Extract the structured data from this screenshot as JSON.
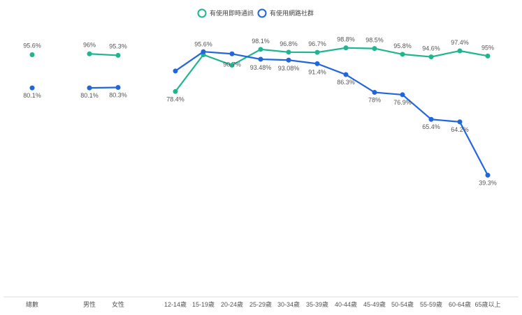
{
  "chart_data": {
    "type": "line",
    "categories": [
      "總數",
      "男性",
      "女性",
      "12-14歲",
      "15-19歲",
      "20-24歲",
      "25-29歲",
      "30-34歲",
      "35-39歲",
      "40-44歲",
      "45-49歲",
      "50-54歲",
      "55-59歲",
      "60-64歲",
      "65歲以上"
    ],
    "groups": [
      [
        0
      ],
      [
        1,
        2
      ],
      [
        3,
        4,
        5,
        6,
        7,
        8,
        9,
        10,
        11,
        12,
        13,
        14
      ]
    ],
    "series": [
      {
        "name": "有使用即時通訊",
        "color": "#1fb58f",
        "values": [
          95.6,
          96,
          95.3,
          78.4,
          95.6,
          90.7,
          98.1,
          96.8,
          96.7,
          98.8,
          98.5,
          95.8,
          94.6,
          97.4,
          95
        ],
        "labels": [
          "95.6%",
          "96%",
          "95.3%",
          "78.4%",
          "95.6%",
          "90.7%",
          "98.1%",
          "96.8%",
          "96.7%",
          "98.8%",
          "98.5%",
          "95.8%",
          "94.6%",
          "97.4%",
          "95%"
        ]
      },
      {
        "name": "有使用網路社群",
        "color": "#2266dd",
        "values": [
          80.1,
          80.1,
          80.3,
          88,
          97,
          96,
          93.48,
          93.08,
          91.4,
          86.3,
          78,
          76.9,
          65.4,
          64.2,
          39.3
        ],
        "labels": [
          "80.1%",
          "80.1%",
          "80.3%",
          "",
          "",
          "",
          "93.48%",
          "93.08%",
          "91.4%",
          "86.3%",
          "78%",
          "76.9%",
          "65.4%",
          "64.2%",
          "39.3%"
        ]
      }
    ],
    "legend_position": "top-center",
    "grid": false
  }
}
